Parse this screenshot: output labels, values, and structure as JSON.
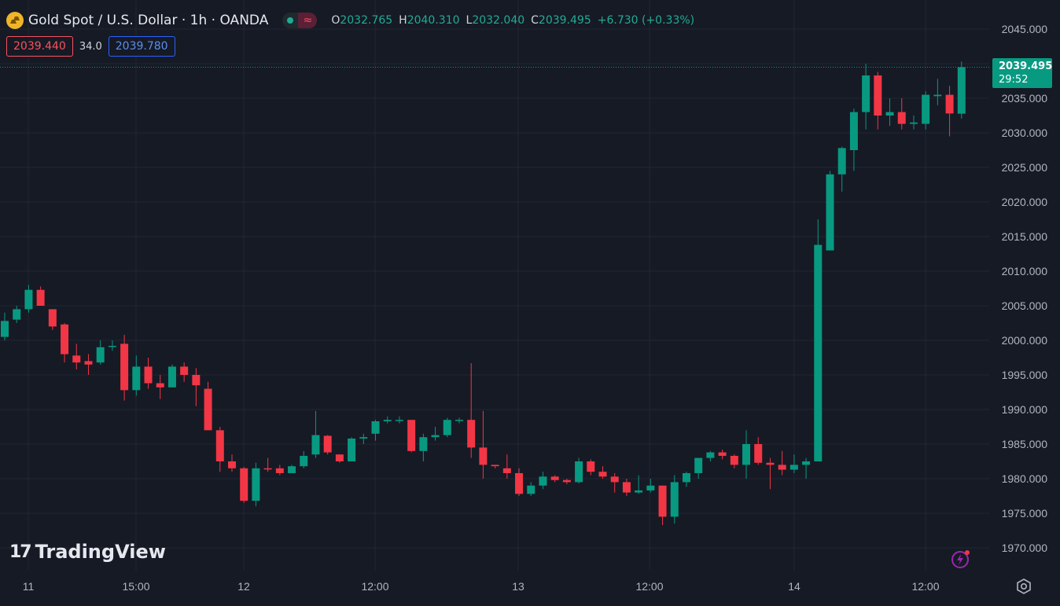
{
  "header": {
    "symbol_title": "Gold Spot / U.S. Dollar · 1h · OANDA",
    "wave_glyph": "≈",
    "ohlc": {
      "o_label": "O",
      "o": "2032.765",
      "h_label": "H",
      "h": "2040.310",
      "l_label": "L",
      "l": "2032.040",
      "c_label": "C",
      "c": "2039.495",
      "change": "+6.730 (+0.33%)"
    }
  },
  "quotes": {
    "sell": "2039.440",
    "spread": "34.0",
    "buy": "2039.780"
  },
  "price_tag": {
    "price": "2039.495",
    "countdown": "29:52"
  },
  "watermark": {
    "logo_glyph": "17",
    "text": "TradingView"
  },
  "colors": {
    "up": "#089981",
    "down": "#f23645",
    "bg": "#161a25",
    "grid": "#232733"
  },
  "chart_data": {
    "type": "candlestick",
    "price_axis": [
      "2045.000",
      "2040.000",
      "2035.000",
      "2030.000",
      "2025.000",
      "2020.000",
      "2015.000",
      "2010.000",
      "2005.000",
      "2000.000",
      "1995.000",
      "1990.000",
      "1985.000",
      "1980.000",
      "1975.000",
      "1970.000"
    ],
    "ylim": [
      1966,
      2048
    ],
    "time_axis": [
      "11",
      "15:00",
      "12",
      "12:00",
      "13",
      "12:00",
      "14",
      "12:00"
    ],
    "candles": [
      {
        "o": 2000.5,
        "h": 2004.0,
        "l": 2000.0,
        "c": 2002.8
      },
      {
        "o": 2003.0,
        "h": 2005.0,
        "l": 2002.5,
        "c": 2004.5
      },
      {
        "o": 2004.5,
        "h": 2008.0,
        "l": 2004.0,
        "c": 2007.3
      },
      {
        "o": 2007.3,
        "h": 2007.8,
        "l": 2005.0,
        "c": 2005.0
      },
      {
        "o": 2004.5,
        "h": 2004.5,
        "l": 2001.5,
        "c": 2002.0
      },
      {
        "o": 2002.3,
        "h": 2002.5,
        "l": 1996.8,
        "c": 1998.0
      },
      {
        "o": 1997.8,
        "h": 1999.5,
        "l": 1995.8,
        "c": 1996.8
      },
      {
        "o": 1997.0,
        "h": 1998.0,
        "l": 1995.0,
        "c": 1996.5
      },
      {
        "o": 1996.8,
        "h": 2000.0,
        "l": 1996.5,
        "c": 1999.0
      },
      {
        "o": 1999.2,
        "h": 2000.0,
        "l": 1998.5,
        "c": 1999.2
      },
      {
        "o": 1999.5,
        "h": 2000.8,
        "l": 1991.3,
        "c": 1992.8
      },
      {
        "o": 1992.8,
        "h": 1997.8,
        "l": 1992.0,
        "c": 1996.2
      },
      {
        "o": 1996.2,
        "h": 1997.5,
        "l": 1993.0,
        "c": 1993.8
      },
      {
        "o": 1993.8,
        "h": 1995.0,
        "l": 1991.5,
        "c": 1993.2
      },
      {
        "o": 1993.2,
        "h": 1996.5,
        "l": 1993.2,
        "c": 1996.2
      },
      {
        "o": 1996.2,
        "h": 1996.8,
        "l": 1994.0,
        "c": 1995.0
      },
      {
        "o": 1995.0,
        "h": 1996.0,
        "l": 1990.5,
        "c": 1993.5
      },
      {
        "o": 1993.0,
        "h": 1994.0,
        "l": 1987.0,
        "c": 1987.0
      },
      {
        "o": 1987.0,
        "h": 1987.5,
        "l": 1981.0,
        "c": 1982.5
      },
      {
        "o": 1982.5,
        "h": 1983.5,
        "l": 1981.0,
        "c": 1981.5
      },
      {
        "o": 1981.5,
        "h": 1981.7,
        "l": 1976.5,
        "c": 1976.8
      },
      {
        "o": 1976.8,
        "h": 1982.3,
        "l": 1976.0,
        "c": 1981.5
      },
      {
        "o": 1981.5,
        "h": 1983.0,
        "l": 1981.0,
        "c": 1981.4
      },
      {
        "o": 1981.5,
        "h": 1982.0,
        "l": 1980.5,
        "c": 1980.8
      },
      {
        "o": 1980.8,
        "h": 1982.0,
        "l": 1980.8,
        "c": 1981.8
      },
      {
        "o": 1981.8,
        "h": 1984.0,
        "l": 1981.5,
        "c": 1983.3
      },
      {
        "o": 1983.5,
        "h": 1989.8,
        "l": 1983.0,
        "c": 1986.3
      },
      {
        "o": 1986.2,
        "h": 1986.3,
        "l": 1983.5,
        "c": 1983.8
      },
      {
        "o": 1983.5,
        "h": 1983.5,
        "l": 1982.3,
        "c": 1982.5
      },
      {
        "o": 1982.5,
        "h": 1986.0,
        "l": 1982.5,
        "c": 1985.8
      },
      {
        "o": 1985.8,
        "h": 1986.5,
        "l": 1985.0,
        "c": 1986.0
      },
      {
        "o": 1986.5,
        "h": 1988.5,
        "l": 1985.5,
        "c": 1988.3
      },
      {
        "o": 1988.3,
        "h": 1989.0,
        "l": 1988.0,
        "c": 1988.5
      },
      {
        "o": 1988.5,
        "h": 1989.0,
        "l": 1988.0,
        "c": 1988.5
      },
      {
        "o": 1988.5,
        "h": 1988.5,
        "l": 1983.8,
        "c": 1984.0
      },
      {
        "o": 1984.0,
        "h": 1986.5,
        "l": 1982.5,
        "c": 1986.0
      },
      {
        "o": 1986.0,
        "h": 1987.5,
        "l": 1985.5,
        "c": 1986.3
      },
      {
        "o": 1986.3,
        "h": 1988.8,
        "l": 1986.0,
        "c": 1988.5
      },
      {
        "o": 1988.5,
        "h": 1988.8,
        "l": 1988.0,
        "c": 1988.5
      },
      {
        "o": 1988.5,
        "h": 1996.7,
        "l": 1983.0,
        "c": 1984.5
      },
      {
        "o": 1984.5,
        "h": 1989.8,
        "l": 1980.0,
        "c": 1982.0
      },
      {
        "o": 1982.0,
        "h": 1982.0,
        "l": 1981.5,
        "c": 1981.8
      },
      {
        "o": 1981.5,
        "h": 1983.5,
        "l": 1980.0,
        "c": 1980.8
      },
      {
        "o": 1980.8,
        "h": 1981.5,
        "l": 1977.5,
        "c": 1977.8
      },
      {
        "o": 1977.8,
        "h": 1979.5,
        "l": 1977.5,
        "c": 1979.0
      },
      {
        "o": 1979.0,
        "h": 1981.0,
        "l": 1978.5,
        "c": 1980.3
      },
      {
        "o": 1980.3,
        "h": 1980.5,
        "l": 1979.5,
        "c": 1979.8
      },
      {
        "o": 1979.8,
        "h": 1980.0,
        "l": 1979.2,
        "c": 1979.5
      },
      {
        "o": 1979.5,
        "h": 1983.0,
        "l": 1979.3,
        "c": 1982.5
      },
      {
        "o": 1982.5,
        "h": 1982.8,
        "l": 1980.5,
        "c": 1981.0
      },
      {
        "o": 1981.0,
        "h": 1981.8,
        "l": 1980.0,
        "c": 1980.3
      },
      {
        "o": 1980.3,
        "h": 1980.8,
        "l": 1978.0,
        "c": 1979.5
      },
      {
        "o": 1979.5,
        "h": 1980.0,
        "l": 1977.5,
        "c": 1978.0
      },
      {
        "o": 1978.0,
        "h": 1980.5,
        "l": 1977.8,
        "c": 1978.3
      },
      {
        "o": 1978.3,
        "h": 1980.0,
        "l": 1978.0,
        "c": 1979.0
      },
      {
        "o": 1979.0,
        "h": 1979.0,
        "l": 1973.3,
        "c": 1974.5
      },
      {
        "o": 1974.5,
        "h": 1980.5,
        "l": 1973.5,
        "c": 1979.5
      },
      {
        "o": 1979.5,
        "h": 1981.0,
        "l": 1978.8,
        "c": 1980.8
      },
      {
        "o": 1980.8,
        "h": 1983.0,
        "l": 1980.0,
        "c": 1983.0
      },
      {
        "o": 1983.0,
        "h": 1984.0,
        "l": 1982.5,
        "c": 1983.8
      },
      {
        "o": 1983.8,
        "h": 1984.2,
        "l": 1982.8,
        "c": 1983.3
      },
      {
        "o": 1983.3,
        "h": 1983.5,
        "l": 1981.5,
        "c": 1982.0
      },
      {
        "o": 1982.0,
        "h": 1987.0,
        "l": 1980.0,
        "c": 1985.0
      },
      {
        "o": 1985.0,
        "h": 1986.0,
        "l": 1982.0,
        "c": 1982.3
      },
      {
        "o": 1982.3,
        "h": 1983.0,
        "l": 1978.5,
        "c": 1982.0
      },
      {
        "o": 1982.0,
        "h": 1984.0,
        "l": 1980.5,
        "c": 1981.3
      },
      {
        "o": 1981.3,
        "h": 1983.5,
        "l": 1980.8,
        "c": 1982.0
      },
      {
        "o": 1982.0,
        "h": 1983.0,
        "l": 1980.0,
        "c": 1982.5
      },
      {
        "o": 1982.5,
        "h": 2017.5,
        "l": 1982.5,
        "c": 2013.8
      },
      {
        "o": 2013.0,
        "h": 2024.5,
        "l": 2013.0,
        "c": 2024.0
      },
      {
        "o": 2024.0,
        "h": 2028.0,
        "l": 2021.5,
        "c": 2027.8
      },
      {
        "o": 2027.5,
        "h": 2033.5,
        "l": 2024.5,
        "c": 2033.0
      },
      {
        "o": 2033.0,
        "h": 2040.0,
        "l": 2030.5,
        "c": 2038.3
      },
      {
        "o": 2038.3,
        "h": 2038.8,
        "l": 2030.5,
        "c": 2032.5
      },
      {
        "o": 2032.5,
        "h": 2035.0,
        "l": 2031.0,
        "c": 2033.0
      },
      {
        "o": 2033.0,
        "h": 2035.0,
        "l": 2030.5,
        "c": 2031.3
      },
      {
        "o": 2031.3,
        "h": 2032.5,
        "l": 2030.5,
        "c": 2031.5
      },
      {
        "o": 2031.3,
        "h": 2036.0,
        "l": 2030.5,
        "c": 2035.5
      },
      {
        "o": 2035.3,
        "h": 2037.8,
        "l": 2034.0,
        "c": 2035.5
      },
      {
        "o": 2035.5,
        "h": 2036.8,
        "l": 2029.5,
        "c": 2032.8
      },
      {
        "o": 2032.765,
        "h": 2040.31,
        "l": 2032.04,
        "c": 2039.495
      }
    ]
  }
}
